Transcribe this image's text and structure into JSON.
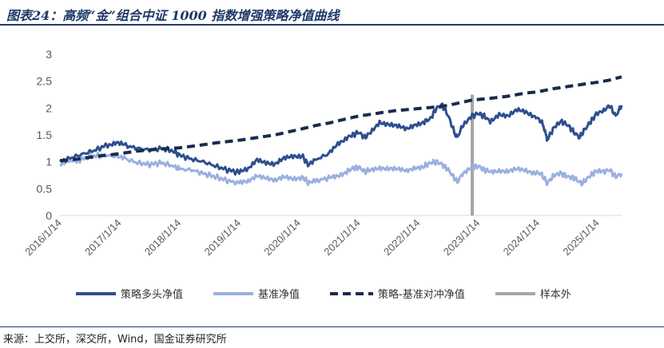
{
  "title": "图表24：高频“金”组合中证 1000 指数增强策略净值曲线",
  "source": "来源：上交所，深交所，Wind，国金证券研究所",
  "chart_data": {
    "type": "line",
    "y_ticks": [
      "0",
      "0.5",
      "1",
      "1.5",
      "2",
      "2.5",
      "3"
    ],
    "ylim": [
      0,
      3
    ],
    "x_ticks": [
      "2016/1/14",
      "2017/1/14",
      "2018/1/14",
      "2019/1/14",
      "2020/1/14",
      "2021/1/14",
      "2022/1/14",
      "2023/1/14",
      "2024/1/14",
      "2025/1/14"
    ],
    "x_range": [
      2016.0,
      2025.4
    ],
    "out_of_sample_start": 2022.9,
    "legend_position": "bottom",
    "series": [
      {
        "name": "策略多头净值",
        "color": "#2c4f8e",
        "style": "solid",
        "points": [
          [
            2016.0,
            1.0
          ],
          [
            2016.2,
            1.08
          ],
          [
            2016.4,
            1.15
          ],
          [
            2016.6,
            1.22
          ],
          [
            2016.8,
            1.32
          ],
          [
            2016.95,
            1.36
          ],
          [
            2017.1,
            1.3
          ],
          [
            2017.3,
            1.25
          ],
          [
            2017.5,
            1.22
          ],
          [
            2017.7,
            1.25
          ],
          [
            2017.9,
            1.2
          ],
          [
            2018.0,
            1.12
          ],
          [
            2018.2,
            1.05
          ],
          [
            2018.4,
            1.0
          ],
          [
            2018.6,
            0.92
          ],
          [
            2018.8,
            0.85
          ],
          [
            2019.0,
            0.8
          ],
          [
            2019.15,
            0.85
          ],
          [
            2019.3,
            1.05
          ],
          [
            2019.45,
            1.0
          ],
          [
            2019.6,
            0.95
          ],
          [
            2019.75,
            1.05
          ],
          [
            2019.9,
            1.1
          ],
          [
            2020.05,
            1.12
          ],
          [
            2020.15,
            0.95
          ],
          [
            2020.3,
            1.05
          ],
          [
            2020.5,
            1.15
          ],
          [
            2020.65,
            1.35
          ],
          [
            2020.8,
            1.45
          ],
          [
            2020.9,
            1.5
          ],
          [
            2021.0,
            1.55
          ],
          [
            2021.1,
            1.45
          ],
          [
            2021.2,
            1.55
          ],
          [
            2021.35,
            1.75
          ],
          [
            2021.5,
            1.7
          ],
          [
            2021.65,
            1.65
          ],
          [
            2021.8,
            1.6
          ],
          [
            2021.95,
            1.7
          ],
          [
            2022.1,
            1.75
          ],
          [
            2022.2,
            1.8
          ],
          [
            2022.3,
            2.0
          ],
          [
            2022.4,
            2.05
          ],
          [
            2022.5,
            1.85
          ],
          [
            2022.6,
            1.55
          ],
          [
            2022.65,
            1.45
          ],
          [
            2022.75,
            1.7
          ],
          [
            2022.9,
            1.85
          ],
          [
            2023.0,
            1.9
          ],
          [
            2023.1,
            1.85
          ],
          [
            2023.2,
            1.75
          ],
          [
            2023.35,
            1.9
          ],
          [
            2023.5,
            1.85
          ],
          [
            2023.65,
            1.95
          ],
          [
            2023.8,
            1.92
          ],
          [
            2023.95,
            1.85
          ],
          [
            2024.05,
            1.75
          ],
          [
            2024.1,
            1.65
          ],
          [
            2024.15,
            1.4
          ],
          [
            2024.25,
            1.6
          ],
          [
            2024.4,
            1.75
          ],
          [
            2024.5,
            1.68
          ],
          [
            2024.6,
            1.55
          ],
          [
            2024.7,
            1.45
          ],
          [
            2024.75,
            1.55
          ],
          [
            2024.85,
            1.7
          ],
          [
            2024.95,
            1.85
          ],
          [
            2025.1,
            1.95
          ],
          [
            2025.2,
            2.05
          ],
          [
            2025.3,
            1.85
          ],
          [
            2025.4,
            2.05
          ]
        ]
      },
      {
        "name": "基准净值",
        "color": "#9bb0e0",
        "style": "solid",
        "points": [
          [
            2016.0,
            0.95
          ],
          [
            2016.15,
            1.05
          ],
          [
            2016.3,
            1.02
          ],
          [
            2016.5,
            1.1
          ],
          [
            2016.7,
            1.12
          ],
          [
            2016.95,
            1.1
          ],
          [
            2017.1,
            1.05
          ],
          [
            2017.3,
            0.98
          ],
          [
            2017.5,
            0.95
          ],
          [
            2017.7,
            0.98
          ],
          [
            2017.9,
            0.92
          ],
          [
            2018.0,
            0.86
          ],
          [
            2018.2,
            0.85
          ],
          [
            2018.4,
            0.78
          ],
          [
            2018.6,
            0.72
          ],
          [
            2018.8,
            0.65
          ],
          [
            2019.0,
            0.6
          ],
          [
            2019.15,
            0.62
          ],
          [
            2019.3,
            0.75
          ],
          [
            2019.45,
            0.72
          ],
          [
            2019.6,
            0.65
          ],
          [
            2019.75,
            0.7
          ],
          [
            2019.9,
            0.68
          ],
          [
            2020.05,
            0.72
          ],
          [
            2020.15,
            0.62
          ],
          [
            2020.3,
            0.65
          ],
          [
            2020.5,
            0.7
          ],
          [
            2020.65,
            0.75
          ],
          [
            2020.8,
            0.82
          ],
          [
            2020.9,
            0.88
          ],
          [
            2021.0,
            0.9
          ],
          [
            2021.1,
            0.82
          ],
          [
            2021.2,
            0.85
          ],
          [
            2021.35,
            0.9
          ],
          [
            2021.5,
            0.88
          ],
          [
            2021.65,
            0.85
          ],
          [
            2021.8,
            0.82
          ],
          [
            2021.95,
            0.9
          ],
          [
            2022.1,
            0.92
          ],
          [
            2022.2,
            0.98
          ],
          [
            2022.3,
            1.0
          ],
          [
            2022.4,
            0.95
          ],
          [
            2022.5,
            0.85
          ],
          [
            2022.6,
            0.7
          ],
          [
            2022.65,
            0.62
          ],
          [
            2022.75,
            0.8
          ],
          [
            2022.9,
            0.9
          ],
          [
            2023.0,
            0.92
          ],
          [
            2023.1,
            0.85
          ],
          [
            2023.2,
            0.82
          ],
          [
            2023.35,
            0.85
          ],
          [
            2023.5,
            0.82
          ],
          [
            2023.65,
            0.85
          ],
          [
            2023.8,
            0.83
          ],
          [
            2023.95,
            0.8
          ],
          [
            2024.05,
            0.78
          ],
          [
            2024.1,
            0.7
          ],
          [
            2024.15,
            0.6
          ],
          [
            2024.25,
            0.72
          ],
          [
            2024.4,
            0.78
          ],
          [
            2024.5,
            0.72
          ],
          [
            2024.6,
            0.7
          ],
          [
            2024.7,
            0.62
          ],
          [
            2024.75,
            0.6
          ],
          [
            2024.85,
            0.72
          ],
          [
            2024.95,
            0.8
          ],
          [
            2025.1,
            0.82
          ],
          [
            2025.2,
            0.85
          ],
          [
            2025.3,
            0.72
          ],
          [
            2025.4,
            0.78
          ]
        ]
      },
      {
        "name": "策略-基准对冲净值",
        "color": "#1a2a4f",
        "style": "dashed",
        "points": [
          [
            2016.0,
            1.02
          ],
          [
            2016.3,
            1.05
          ],
          [
            2016.6,
            1.1
          ],
          [
            2017.0,
            1.15
          ],
          [
            2017.3,
            1.2
          ],
          [
            2017.6,
            1.23
          ],
          [
            2018.0,
            1.26
          ],
          [
            2018.3,
            1.3
          ],
          [
            2018.6,
            1.35
          ],
          [
            2019.0,
            1.4
          ],
          [
            2019.3,
            1.45
          ],
          [
            2019.6,
            1.5
          ],
          [
            2020.0,
            1.6
          ],
          [
            2020.3,
            1.68
          ],
          [
            2020.5,
            1.72
          ],
          [
            2020.8,
            1.8
          ],
          [
            2021.0,
            1.85
          ],
          [
            2021.3,
            1.9
          ],
          [
            2021.6,
            1.95
          ],
          [
            2021.9,
            1.98
          ],
          [
            2022.1,
            2.0
          ],
          [
            2022.3,
            2.02
          ],
          [
            2022.5,
            2.05
          ],
          [
            2022.7,
            2.1
          ],
          [
            2022.9,
            2.15
          ],
          [
            2023.2,
            2.18
          ],
          [
            2023.5,
            2.22
          ],
          [
            2023.8,
            2.28
          ],
          [
            2024.0,
            2.3
          ],
          [
            2024.2,
            2.35
          ],
          [
            2024.5,
            2.4
          ],
          [
            2024.8,
            2.45
          ],
          [
            2025.0,
            2.48
          ],
          [
            2025.2,
            2.52
          ],
          [
            2025.4,
            2.58
          ]
        ]
      },
      {
        "name": "样本外",
        "color": "#a6a6a6",
        "style": "bar"
      }
    ]
  }
}
